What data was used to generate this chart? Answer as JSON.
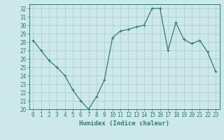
{
  "x": [
    0,
    1,
    2,
    3,
    4,
    5,
    6,
    7,
    8,
    9,
    10,
    11,
    12,
    13,
    14,
    15,
    16,
    17,
    18,
    19,
    20,
    21,
    22,
    23
  ],
  "y": [
    28.2,
    27.0,
    25.8,
    25.0,
    24.0,
    22.3,
    21.0,
    20.0,
    21.5,
    23.5,
    28.5,
    29.3,
    29.5,
    29.8,
    30.0,
    32.0,
    32.0,
    27.0,
    30.3,
    28.3,
    27.8,
    28.2,
    26.8,
    24.5
  ],
  "line_color": "#2e7d6e",
  "marker": "+",
  "markersize": 3,
  "linewidth": 0.9,
  "bg_color": "#cde8e8",
  "grid_color": "#aacccc",
  "xlabel": "Humidex (Indice chaleur)",
  "ylabel": "",
  "xlim": [
    -0.5,
    23.5
  ],
  "ylim": [
    20,
    32.5
  ],
  "yticks": [
    20,
    21,
    22,
    23,
    24,
    25,
    26,
    27,
    28,
    29,
    30,
    31,
    32
  ],
  "xticks": [
    0,
    1,
    2,
    3,
    4,
    5,
    6,
    7,
    8,
    9,
    10,
    11,
    12,
    13,
    14,
    15,
    16,
    17,
    18,
    19,
    20,
    21,
    22,
    23
  ],
  "xlabel_fontsize": 6.5,
  "tick_fontsize": 5.5
}
